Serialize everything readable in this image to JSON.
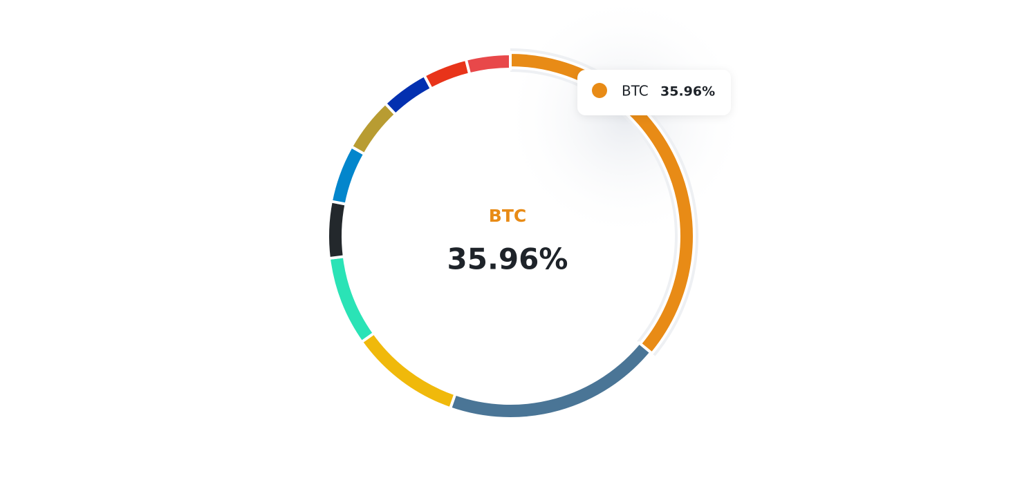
{
  "chart_data": {
    "type": "donut",
    "categories": [
      "BTC",
      null,
      null,
      null,
      null,
      null,
      null,
      null,
      null,
      null
    ],
    "values": [
      35.96,
      19.3,
      9.8,
      7.9,
      5.0,
      5.1,
      4.8,
      4.2,
      3.9,
      3.9
    ],
    "value_labels": [
      "35.96%",
      null,
      null,
      null,
      null,
      null,
      null,
      null,
      null,
      null
    ],
    "colors": [
      "#e88b16",
      "#4a7596",
      "#f0b90b",
      "#2ae3b6",
      "#23282c",
      "#0386cc",
      "#b89c32",
      "#0330b0",
      "#e8341a",
      "#e8484a"
    ],
    "highlight": 0
  }
}
